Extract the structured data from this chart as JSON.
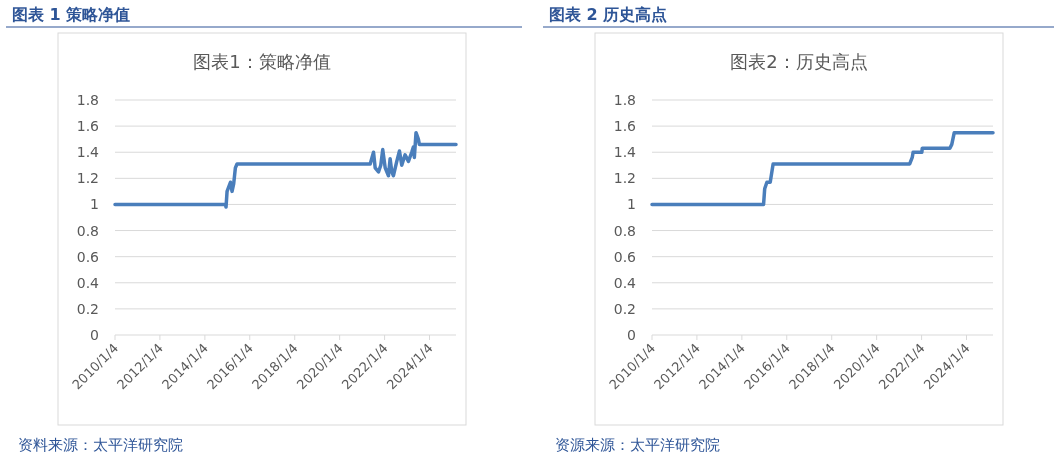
{
  "chart_data": [
    {
      "type": "line",
      "title": "图表 1 策略净值",
      "subtitle": "图表1：策略净值",
      "annotations": [
        "资料来源：太平洋研究院"
      ],
      "x": [
        "2010-01-04",
        "2014-12-04",
        "2014-12-14",
        "2014-12-31",
        "2015-02-24",
        "2015-03-22",
        "2015-04-18",
        "2015-05-15",
        "2015-06-11",
        "2021-05-15",
        "2021-07-08",
        "2021-08-04",
        "2021-09-27",
        "2021-11-03",
        "2021-12-05",
        "2022-01-14",
        "2022-03-08",
        "2022-04-04",
        "2022-05-01",
        "2022-05-28",
        "2022-07-21",
        "2022-09-03",
        "2022-10-10",
        "2022-12-03",
        "2023-01-27",
        "2023-03-21",
        "2023-04-17",
        "2023-05-03",
        "2023-05-30",
        "2023-07-07",
        "2023-07-23",
        "2025-03-10"
      ],
      "series": [
        {
          "color": "#4a7ebb",
          "values": [
            1.0,
            1.0,
            0.98,
            1.1,
            1.17,
            1.1,
            1.16,
            1.28,
            1.31,
            1.31,
            1.4,
            1.28,
            1.25,
            1.3,
            1.42,
            1.28,
            1.22,
            1.35,
            1.25,
            1.22,
            1.33,
            1.41,
            1.3,
            1.38,
            1.33,
            1.4,
            1.44,
            1.36,
            1.55,
            1.5,
            1.46,
            1.46
          ]
        }
      ],
      "xlim": [
        "2010-01-04",
        "2025-03-10"
      ],
      "xticks": [
        {
          "value": "2010-01-04",
          "label": "2010/1/4"
        },
        {
          "value": "2012-01-04",
          "label": "2012/1/4"
        },
        {
          "value": "2014-01-04",
          "label": "2014/1/4"
        },
        {
          "value": "2016-01-04",
          "label": "2016/1/4"
        },
        {
          "value": "2018-01-04",
          "label": "2018/1/4"
        },
        {
          "value": "2020-01-04",
          "label": "2020/1/4"
        },
        {
          "value": "2022-01-04",
          "label": "2022/1/4"
        },
        {
          "value": "2024-01-04",
          "label": "2024/1/4"
        }
      ],
      "ylim": [
        0,
        1.8
      ],
      "yticks": [
        0,
        0.2,
        0.4,
        0.6,
        0.8,
        1,
        1.2,
        1.4,
        1.6,
        1.8
      ],
      "grid": "y"
    },
    {
      "type": "line",
      "title": "图表 2 历史高点",
      "subtitle": "图表2：历史高点",
      "annotations": [
        "资源来源：太平洋研究院"
      ],
      "x": [
        "2010-01-04",
        "2014-12-23",
        "2015-01-10",
        "2015-02-15",
        "2015-04-10",
        "2015-05-27",
        "2021-06-25",
        "2021-08-05",
        "2021-08-19",
        "2022-01-08",
        "2022-01-15",
        "2023-04-09",
        "2023-05-10",
        "2023-06-19",
        "2025-03-10"
      ],
      "series": [
        {
          "color": "#4a7ebb",
          "values": [
            1.0,
            1.0,
            1.12,
            1.17,
            1.17,
            1.31,
            1.31,
            1.36,
            1.4,
            1.4,
            1.43,
            1.43,
            1.46,
            1.55,
            1.55
          ]
        }
      ],
      "xlim": [
        "2010-01-04",
        "2025-03-10"
      ],
      "xticks": [
        {
          "value": "2010-01-04",
          "label": "2010/1/4"
        },
        {
          "value": "2012-01-04",
          "label": "2012/1/4"
        },
        {
          "value": "2014-01-04",
          "label": "2014/1/4"
        },
        {
          "value": "2016-01-04",
          "label": "2016/1/4"
        },
        {
          "value": "2018-01-04",
          "label": "2018/1/4"
        },
        {
          "value": "2020-01-04",
          "label": "2020/1/4"
        },
        {
          "value": "2022-01-04",
          "label": "2022/1/4"
        },
        {
          "value": "2024-01-04",
          "label": "2024/1/4"
        }
      ],
      "ylim": [
        0,
        1.8
      ],
      "yticks": [
        0,
        0.2,
        0.4,
        0.6,
        0.8,
        1,
        1.2,
        1.4,
        1.6,
        1.8
      ],
      "grid": "y"
    }
  ]
}
